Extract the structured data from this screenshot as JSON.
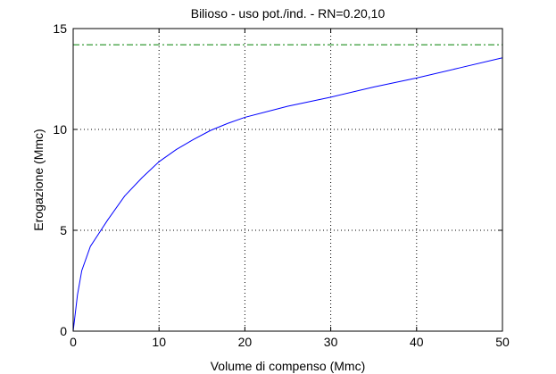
{
  "chart_data": {
    "type": "line",
    "title": "Bilioso  -  uso pot./ind.  -    RN=0.20,10",
    "xlabel": "Volume di compenso (Mmc)",
    "ylabel": "Erogazione (Mmc)",
    "xlim": [
      0,
      50
    ],
    "ylim": [
      0,
      15
    ],
    "xticks": [
      0,
      10,
      20,
      30,
      40,
      50
    ],
    "yticks": [
      0,
      5,
      10,
      15
    ],
    "grid": true,
    "series": [
      {
        "color": "#0000ff",
        "style": "solid",
        "x": [
          0,
          0.5,
          1,
          2,
          4,
          6,
          8,
          10,
          12,
          14,
          16,
          18,
          20,
          25,
          30,
          35,
          40,
          45,
          50
        ],
        "y": [
          0,
          1.8,
          3.0,
          4.2,
          5.5,
          6.7,
          7.6,
          8.4,
          9.0,
          9.5,
          9.95,
          10.3,
          10.6,
          11.15,
          11.6,
          12.1,
          12.55,
          13.05,
          13.55
        ]
      },
      {
        "color": "#008000",
        "style": "dashdot",
        "x": [
          0,
          50
        ],
        "y": [
          14.2,
          14.2
        ]
      }
    ]
  }
}
